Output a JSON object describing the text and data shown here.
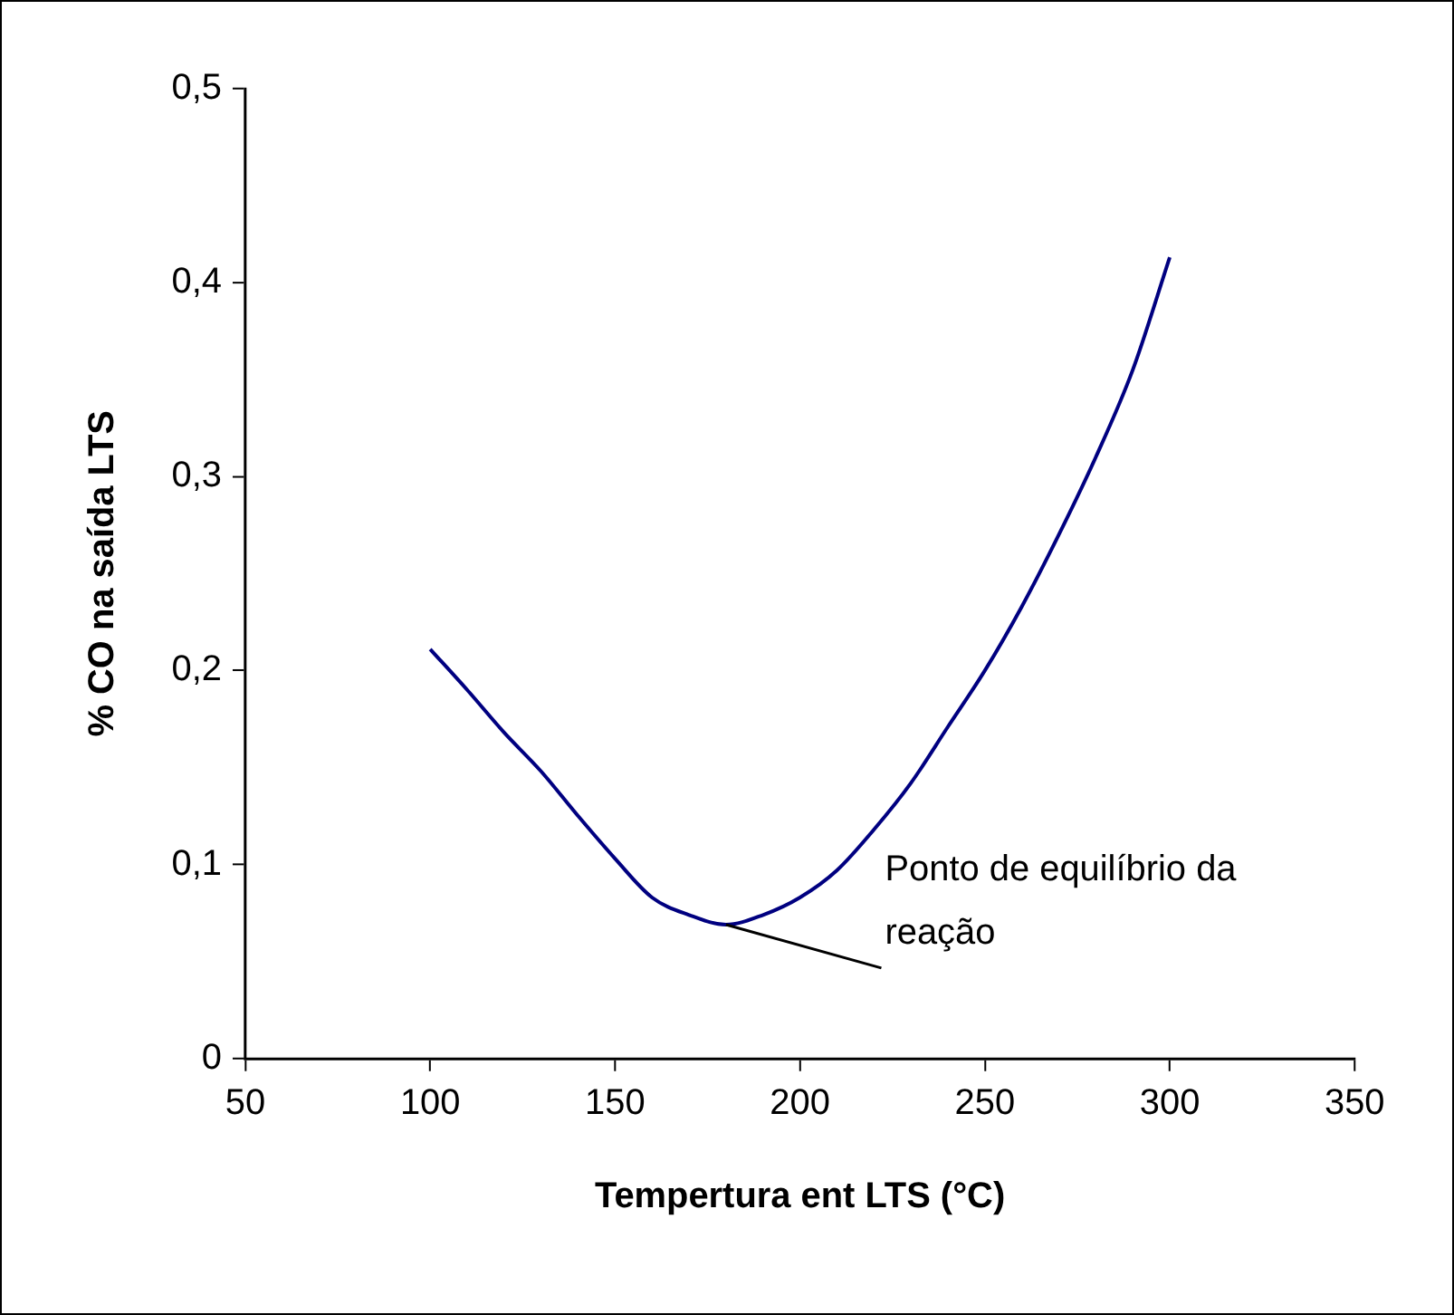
{
  "chart_data": {
    "type": "line",
    "xlabel": "Tempertura ent LTS (°C)",
    "ylabel": "% CO na saída LTS",
    "series": [
      {
        "color": "#000080",
        "x": [
          100,
          110,
          120,
          130,
          140,
          150,
          160,
          170,
          180,
          190,
          200,
          210,
          220,
          230,
          240,
          250,
          260,
          270,
          280,
          290,
          300
        ],
        "values": [
          0.211,
          0.19,
          0.168,
          0.148,
          0.125,
          0.103,
          0.083,
          0.074,
          0.069,
          0.074,
          0.083,
          0.097,
          0.118,
          0.142,
          0.171,
          0.2,
          0.233,
          0.27,
          0.31,
          0.355,
          0.413
        ]
      }
    ],
    "xlim": [
      50,
      350
    ],
    "xticks": [
      50,
      100,
      150,
      200,
      250,
      300,
      350
    ],
    "ylim": [
      0,
      0.5
    ],
    "yticks": [
      0,
      {
        "value": 0.1,
        "label": "0,1"
      },
      {
        "value": 0.2,
        "label": "0,2"
      },
      {
        "value": 0.3,
        "label": "0,3"
      },
      {
        "value": 0.4,
        "label": "0,4"
      },
      {
        "value": 0.5,
        "label": "0,5"
      }
    ],
    "annotations": [
      {
        "text": "Ponto de equilíbrio da reação",
        "x": 180,
        "y": 0.069
      }
    ],
    "grid": false,
    "legend": false,
    "marker": "none",
    "line_style": "solid"
  }
}
